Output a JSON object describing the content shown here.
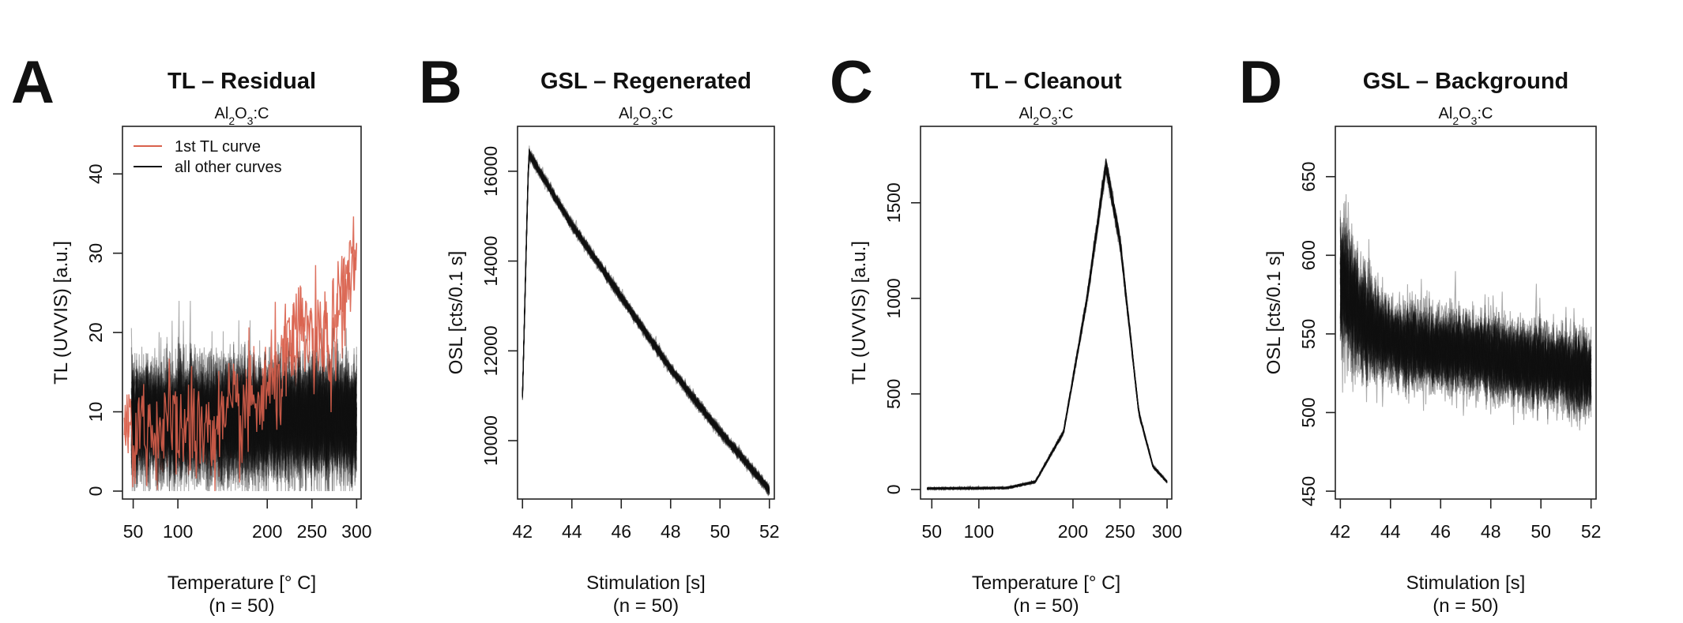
{
  "chart_data": [
    {
      "id": "A",
      "type": "line",
      "letter": "A",
      "title": "TL – Residual",
      "subtitle_parts": [
        "Al",
        "2",
        "O",
        "3",
        ":C"
      ],
      "xlabel": "Temperature [° C]",
      "n_label": "(n = 50)",
      "ylabel": "TL (UVVIS) [a.u.]",
      "xlim": [
        38,
        305
      ],
      "ylim": [
        -1,
        46
      ],
      "xticks": [
        50,
        100,
        200,
        250,
        300
      ],
      "yticks": [
        0,
        10,
        20,
        30,
        40
      ],
      "legend": [
        {
          "label": "1st TL curve",
          "color": "#d9614c"
        },
        {
          "label": "all other curves",
          "color": "#111111"
        }
      ],
      "series": [
        {
          "name": "1st TL curve",
          "color": "#d9614c",
          "x_range": [
            40,
            300
          ],
          "baseline": [
            [
              40,
              8
            ],
            [
              150,
              8
            ],
            [
              200,
              12
            ],
            [
              240,
              20
            ],
            [
              270,
              18
            ],
            [
              300,
              30
            ]
          ],
          "noise": 6
        },
        {
          "name": "all other curves",
          "color": "#111111",
          "x_range": [
            48,
            300
          ],
          "baseline": [
            [
              48,
              9
            ],
            [
              300,
              9
            ]
          ],
          "noise": 7,
          "curves": 50
        }
      ]
    },
    {
      "id": "B",
      "type": "line",
      "letter": "B",
      "title": "GSL – Regenerated",
      "subtitle_parts": [
        "Al",
        "2",
        "O",
        "3",
        ":C"
      ],
      "xlabel": "Stimulation [s]",
      "n_label": "(n = 50)",
      "ylabel": "OSL [cts/0.1 s]",
      "xlim": [
        41.8,
        52.2
      ],
      "ylim": [
        8700,
        17000
      ],
      "xticks": [
        42,
        44,
        46,
        48,
        50,
        52
      ],
      "yticks": [
        10000,
        12000,
        14000,
        16000
      ],
      "series": [
        {
          "name": "curves",
          "color": "#111111",
          "x_range": [
            42,
            52
          ],
          "baseline": [
            [
              42,
              11000
            ],
            [
              42.25,
              16400
            ],
            [
              44,
              14800
            ],
            [
              46,
              13200
            ],
            [
              48,
              11600
            ],
            [
              50,
              10200
            ],
            [
              52,
              8900
            ]
          ],
          "noise": 120,
          "curves": 50
        }
      ]
    },
    {
      "id": "C",
      "type": "line",
      "letter": "C",
      "title": "TL – Cleanout",
      "subtitle_parts": [
        "Al",
        "2",
        "O",
        "3",
        ":C"
      ],
      "xlabel": "Temperature [° C]",
      "n_label": "(n = 50)",
      "ylabel": "TL (UVVIS) [a.u.]",
      "xlim": [
        38,
        305
      ],
      "ylim": [
        -50,
        1900
      ],
      "xticks": [
        50,
        100,
        200,
        250,
        300
      ],
      "yticks": [
        0,
        500,
        1000,
        1500
      ],
      "series": [
        {
          "name": "curves",
          "color": "#111111",
          "x_range": [
            45,
            300
          ],
          "baseline": [
            [
              45,
              5
            ],
            [
              130,
              8
            ],
            [
              160,
              40
            ],
            [
              190,
              300
            ],
            [
              215,
              1000
            ],
            [
              235,
              1700
            ],
            [
              250,
              1300
            ],
            [
              270,
              400
            ],
            [
              285,
              120
            ],
            [
              300,
              40
            ]
          ],
          "noise": 40,
          "curves": 50
        }
      ]
    },
    {
      "id": "D",
      "type": "line",
      "letter": "D",
      "title": "GSL – Background",
      "subtitle_parts": [
        "Al",
        "2",
        "O",
        "3",
        ":C"
      ],
      "xlabel": "Stimulation [s]",
      "n_label": "(n = 50)",
      "ylabel": "OSL [cts/0.1 s]",
      "xlim": [
        41.8,
        52.2
      ],
      "ylim": [
        445,
        682
      ],
      "xticks": [
        42,
        44,
        46,
        48,
        50,
        52
      ],
      "yticks": [
        450,
        500,
        550,
        600,
        650
      ],
      "series": [
        {
          "name": "curves",
          "color": "#111111",
          "x_range": [
            42,
            52
          ],
          "baseline": [
            [
              42,
              585
            ],
            [
              43,
              555
            ],
            [
              44,
              545
            ],
            [
              46,
              540
            ],
            [
              48,
              535
            ],
            [
              50,
              530
            ],
            [
              52,
              525
            ]
          ],
          "noise": 30,
          "curves": 50
        }
      ]
    }
  ]
}
